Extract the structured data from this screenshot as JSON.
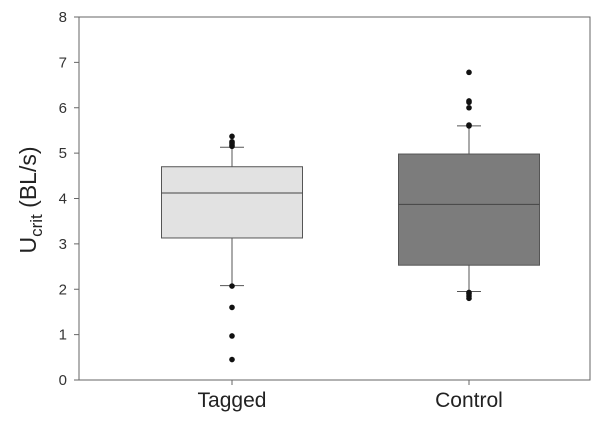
{
  "chart_data": {
    "type": "box",
    "ylabel": "Ucrit (BL/s)",
    "ylabel_main": "U",
    "ylabel_sub": "crit",
    "ylabel_unit": " (BL/s)",
    "ylim": [
      0,
      8
    ],
    "yticks": [
      "0",
      "1",
      "2",
      "3",
      "4",
      "5",
      "6",
      "7",
      "8"
    ],
    "grid": false,
    "categories": [
      "Tagged",
      "Control"
    ],
    "boxes": [
      {
        "name": "Tagged",
        "fill": "#e2e2e2",
        "whisker_low": 2.08,
        "q1": 3.13,
        "median": 4.12,
        "q3": 4.7,
        "whisker_high": 5.13,
        "outliers": [
          0.45,
          0.97,
          1.6,
          2.07,
          5.15,
          5.18,
          5.22,
          5.25,
          5.37
        ]
      },
      {
        "name": "Control",
        "fill": "#7c7c7c",
        "whisker_low": 1.95,
        "q1": 2.53,
        "median": 3.87,
        "q3": 4.98,
        "whisker_high": 5.6,
        "outliers": [
          1.8,
          1.85,
          1.9,
          1.93,
          5.6,
          5.62,
          6.0,
          6.12,
          6.15,
          6.78
        ]
      }
    ]
  }
}
